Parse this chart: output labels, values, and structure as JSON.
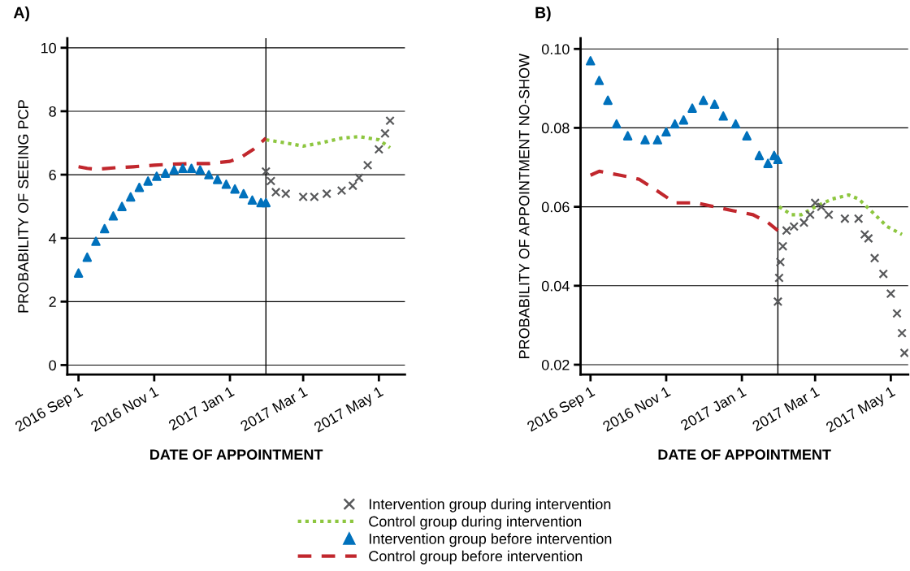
{
  "chart_data": [
    {
      "type": "scatter",
      "title": "A)",
      "xlabel": "DATE OF APPOINTMENT",
      "ylabel": "PROBABILITY OF SEEING PCP",
      "xlim": [
        "2016-08-23",
        "2017-05-22"
      ],
      "ylim": [
        -0.3,
        10.3
      ],
      "yticks": [
        0,
        2,
        4,
        6,
        8,
        10
      ],
      "xticks": [
        {
          "value": "2016-09-01",
          "label": "2016 Sep 1"
        },
        {
          "value": "2016-11-01",
          "label": "2016 Nov 1"
        },
        {
          "value": "2017-01-01",
          "label": "2017 Jan 1"
        },
        {
          "value": "2017-03-01",
          "label": "2017 Mar 1"
        },
        {
          "value": "2017-05-01",
          "label": "2017 May 1"
        }
      ],
      "grid": "y",
      "legend": "bottom",
      "ref_lines": [
        {
          "axis": "x",
          "value": "2017-01-30",
          "color": "#000000",
          "line_style": "solid"
        }
      ],
      "series": [
        {
          "name": "Intervention group during intervention",
          "marker": "cross",
          "color": "#58595b",
          "x": [
            "2017-01-30",
            "2017-02-03",
            "2017-02-07",
            "2017-02-15",
            "2017-03-01",
            "2017-03-10",
            "2017-03-20",
            "2017-04-01",
            "2017-04-10",
            "2017-04-15",
            "2017-04-22",
            "2017-05-01",
            "2017-05-06",
            "2017-05-10"
          ],
          "values": [
            6.1,
            5.8,
            5.45,
            5.4,
            5.3,
            5.3,
            5.4,
            5.5,
            5.65,
            5.9,
            6.3,
            6.8,
            7.3,
            7.7
          ]
        },
        {
          "name": "Control group during intervention",
          "type": "line",
          "line_style": "dotted",
          "color": "#8dc63f",
          "x": [
            "2017-01-30",
            "2017-02-15",
            "2017-03-01",
            "2017-03-15",
            "2017-04-01",
            "2017-04-15",
            "2017-05-01",
            "2017-05-10"
          ],
          "values": [
            7.1,
            7.0,
            6.9,
            7.0,
            7.15,
            7.2,
            7.1,
            6.85
          ]
        },
        {
          "name": "Intervention group before intervention",
          "marker": "triangle",
          "color": "#0071bc",
          "x": [
            "2016-09-01",
            "2016-09-08",
            "2016-09-15",
            "2016-09-22",
            "2016-09-29",
            "2016-10-06",
            "2016-10-13",
            "2016-10-20",
            "2016-10-27",
            "2016-11-03",
            "2016-11-10",
            "2016-11-17",
            "2016-11-24",
            "2016-12-01",
            "2016-12-08",
            "2016-12-15",
            "2016-12-22",
            "2016-12-29",
            "2017-01-05",
            "2017-01-12",
            "2017-01-19",
            "2017-01-26",
            "2017-01-30"
          ],
          "values": [
            2.9,
            3.4,
            3.9,
            4.3,
            4.7,
            5.0,
            5.3,
            5.6,
            5.8,
            5.95,
            6.05,
            6.15,
            6.2,
            6.2,
            6.15,
            6.0,
            5.85,
            5.7,
            5.55,
            5.4,
            5.2,
            5.12,
            5.12
          ]
        },
        {
          "name": "Control group before intervention",
          "type": "line",
          "line_style": "dashed",
          "color": "#c1272d",
          "x": [
            "2016-09-01",
            "2016-09-08",
            "2016-09-15",
            "2016-10-01",
            "2016-10-15",
            "2016-11-01",
            "2016-11-15",
            "2016-12-01",
            "2016-12-15",
            "2017-01-01",
            "2017-01-10",
            "2017-01-20",
            "2017-01-30"
          ],
          "values": [
            6.25,
            6.2,
            6.17,
            6.22,
            6.25,
            6.3,
            6.33,
            6.35,
            6.35,
            6.42,
            6.55,
            6.8,
            7.15
          ]
        }
      ]
    },
    {
      "type": "scatter",
      "title": "B)",
      "xlabel": "DATE OF APPOINTMENT",
      "ylabel": "PROBABILITY OF APPOINTMENT NO-SHOW",
      "xlim": [
        "2016-08-24",
        "2017-05-15"
      ],
      "ylim": [
        0.0175,
        0.1027
      ],
      "yticks": [
        {
          "value": 0.02,
          "label": "0.02"
        },
        {
          "value": 0.04,
          "label": "0.04"
        },
        {
          "value": 0.06,
          "label": "0.06"
        },
        {
          "value": 0.08,
          "label": "0.08"
        },
        {
          "value": 0.1,
          "label": "0.10"
        }
      ],
      "xticks": [
        {
          "value": "2016-09-01",
          "label": "2016 Sep 1"
        },
        {
          "value": "2016-11-01",
          "label": "2016 Nov 1"
        },
        {
          "value": "2017-01-01",
          "label": "2017 Jan 1"
        },
        {
          "value": "2017-03-01",
          "label": "2017 Mar 1"
        },
        {
          "value": "2017-05-01",
          "label": "2017 May 1"
        }
      ],
      "grid": "y",
      "ref_lines": [
        {
          "axis": "x",
          "value": "2017-01-30",
          "color": "#000000",
          "line_style": "solid"
        }
      ],
      "series": [
        {
          "marker": "cross",
          "color": "#58595b",
          "x": [
            "2017-01-30",
            "2017-01-31",
            "2017-02-01",
            "2017-02-03",
            "2017-02-06",
            "2017-02-12",
            "2017-02-20",
            "2017-02-25",
            "2017-03-01",
            "2017-03-06",
            "2017-03-12",
            "2017-03-25",
            "2017-04-05",
            "2017-04-10",
            "2017-04-13",
            "2017-04-18",
            "2017-04-25",
            "2017-05-01",
            "2017-05-06",
            "2017-05-10",
            "2017-05-12"
          ],
          "values": [
            0.036,
            0.042,
            0.046,
            0.05,
            0.054,
            0.055,
            0.056,
            0.058,
            0.061,
            0.06,
            0.058,
            0.057,
            0.057,
            0.053,
            0.052,
            0.047,
            0.043,
            0.038,
            0.033,
            0.028,
            0.023
          ]
        },
        {
          "type": "line",
          "line_style": "dotted",
          "color": "#8dc63f",
          "x": [
            "2017-01-31",
            "2017-02-10",
            "2017-02-18",
            "2017-03-01",
            "2017-03-15",
            "2017-03-28",
            "2017-04-05",
            "2017-04-15",
            "2017-04-28",
            "2017-05-10"
          ],
          "values": [
            0.06,
            0.058,
            0.058,
            0.06,
            0.062,
            0.063,
            0.062,
            0.059,
            0.055,
            0.053
          ]
        },
        {
          "marker": "triangle",
          "color": "#0071bc",
          "x": [
            "2016-09-01",
            "2016-09-08",
            "2016-09-15",
            "2016-09-22",
            "2016-10-01",
            "2016-10-15",
            "2016-10-25",
            "2016-11-01",
            "2016-11-08",
            "2016-11-15",
            "2016-11-22",
            "2016-12-01",
            "2016-12-10",
            "2016-12-17",
            "2016-12-27",
            "2017-01-05",
            "2017-01-15",
            "2017-01-22",
            "2017-01-27",
            "2017-01-30"
          ],
          "values": [
            0.097,
            0.092,
            0.087,
            0.081,
            0.078,
            0.077,
            0.077,
            0.079,
            0.081,
            0.082,
            0.085,
            0.087,
            0.086,
            0.083,
            0.081,
            0.078,
            0.073,
            0.071,
            0.073,
            0.072
          ]
        },
        {
          "type": "line",
          "line_style": "dashed",
          "color": "#c1272d",
          "x": [
            "2016-09-01",
            "2016-09-08",
            "2016-09-25",
            "2016-10-10",
            "2016-10-25",
            "2016-11-08",
            "2016-11-25",
            "2016-12-10",
            "2016-12-25",
            "2017-01-10",
            "2017-01-22",
            "2017-01-30"
          ],
          "values": [
            0.068,
            0.069,
            0.068,
            0.067,
            0.064,
            0.061,
            0.061,
            0.06,
            0.059,
            0.058,
            0.056,
            0.054
          ]
        }
      ]
    }
  ]
}
